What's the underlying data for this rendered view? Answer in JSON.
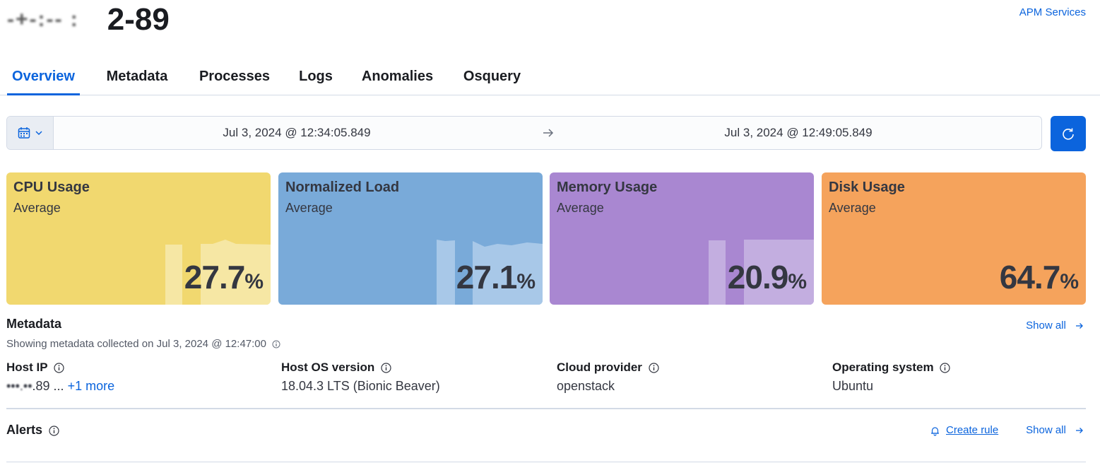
{
  "header": {
    "title_redacted_prefix": "-+-:-- :",
    "title": "2-89",
    "apm_link": "APM Services"
  },
  "tabs": [
    {
      "label": "Overview",
      "selected": true
    },
    {
      "label": "Metadata",
      "selected": false
    },
    {
      "label": "Processes",
      "selected": false
    },
    {
      "label": "Logs",
      "selected": false
    },
    {
      "label": "Anomalies",
      "selected": false
    },
    {
      "label": "Osquery",
      "selected": false
    }
  ],
  "date_range": {
    "start": "Jul 3, 2024 @ 12:34:05.849",
    "end": "Jul 3, 2024 @ 12:49:05.849",
    "quick_icon": "calendar-icon",
    "refresh_icon": "refresh-icon"
  },
  "kpis": [
    {
      "title": "CPU Usage",
      "subtitle": "Average",
      "value": "27.7",
      "unit": "%",
      "color": "#f1d86f",
      "spark_color": "#f6e7a4"
    },
    {
      "title": "Normalized Load",
      "subtitle": "Average",
      "value": "27.1",
      "unit": "%",
      "color": "#79aad9",
      "spark_color": "#a8c8e8"
    },
    {
      "title": "Memory Usage",
      "subtitle": "Average",
      "value": "20.9",
      "unit": "%",
      "color": "#a987d1",
      "spark_color": "#c3aee0"
    },
    {
      "title": "Disk Usage",
      "subtitle": "Average",
      "value": "64.7",
      "unit": "%",
      "color": "#f5a35c",
      "spark_color": "#f5a35c"
    }
  ],
  "metadata": {
    "title": "Metadata",
    "subtitle": "Showing metadata collected on Jul 3, 2024 @ 12:47:00",
    "show_all": "Show all",
    "fields": [
      {
        "label": "Host IP",
        "value_redacted": "•••.••",
        "value": ".89 ...",
        "more": "+1 more"
      },
      {
        "label": "Host OS version",
        "value": "18.04.3 LTS (Bionic Beaver)"
      },
      {
        "label": "Cloud provider",
        "value": "openstack"
      },
      {
        "label": "Operating system",
        "value": "Ubuntu"
      }
    ]
  },
  "alerts": {
    "title": "Alerts",
    "create_rule": "Create rule",
    "show_all": "Show all"
  }
}
